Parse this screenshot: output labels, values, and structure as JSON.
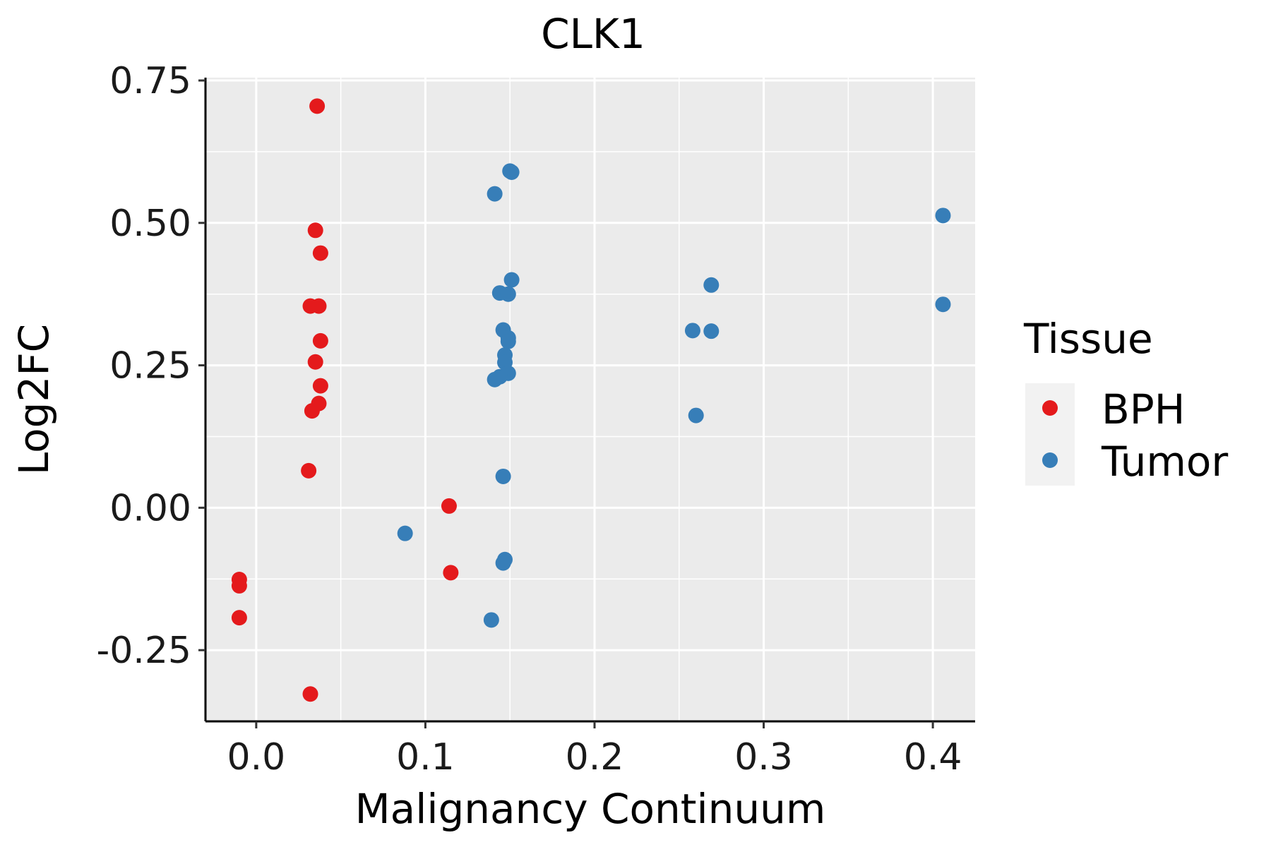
{
  "chart_data": {
    "type": "scatter",
    "title": "CLK1",
    "xlabel": "Malignancy Continuum",
    "ylabel": "Log2FC",
    "xlim": [
      -0.03,
      0.425
    ],
    "ylim": [
      -0.375,
      0.755
    ],
    "xticks": [
      0.0,
      0.1,
      0.2,
      0.3,
      0.4
    ],
    "xtick_labels": [
      "0.0",
      "0.1",
      "0.2",
      "0.3",
      "0.4"
    ],
    "yticks": [
      -0.25,
      0.0,
      0.25,
      0.5,
      0.75
    ],
    "ytick_labels": [
      "-0.25",
      "0.00",
      "0.25",
      "0.50",
      "0.75"
    ],
    "grid": true,
    "legend": {
      "title": "Tissue",
      "position": "right",
      "entries": [
        {
          "label": "BPH",
          "color": "#e41a1c"
        },
        {
          "label": "Tumor",
          "color": "#377eb8"
        }
      ]
    },
    "series": [
      {
        "name": "BPH",
        "color": "#e41a1c",
        "points": [
          {
            "x": 0.036,
            "y": 0.705
          },
          {
            "x": 0.035,
            "y": 0.487
          },
          {
            "x": 0.038,
            "y": 0.447
          },
          {
            "x": 0.032,
            "y": 0.354
          },
          {
            "x": 0.037,
            "y": 0.354
          },
          {
            "x": 0.038,
            "y": 0.293
          },
          {
            "x": 0.035,
            "y": 0.256
          },
          {
            "x": 0.038,
            "y": 0.214
          },
          {
            "x": 0.037,
            "y": 0.183
          },
          {
            "x": 0.033,
            "y": 0.17
          },
          {
            "x": 0.031,
            "y": 0.065
          },
          {
            "x": 0.114,
            "y": 0.003
          },
          {
            "x": 0.115,
            "y": -0.114
          },
          {
            "x": -0.01,
            "y": -0.126
          },
          {
            "x": -0.01,
            "y": -0.137
          },
          {
            "x": -0.01,
            "y": -0.193
          },
          {
            "x": 0.032,
            "y": -0.327
          }
        ]
      },
      {
        "name": "Tumor",
        "color": "#377eb8",
        "points": [
          {
            "x": 0.15,
            "y": 0.591
          },
          {
            "x": 0.151,
            "y": 0.589
          },
          {
            "x": 0.141,
            "y": 0.551
          },
          {
            "x": 0.406,
            "y": 0.513
          },
          {
            "x": 0.151,
            "y": 0.4
          },
          {
            "x": 0.269,
            "y": 0.391
          },
          {
            "x": 0.144,
            "y": 0.377
          },
          {
            "x": 0.149,
            "y": 0.375
          },
          {
            "x": 0.406,
            "y": 0.357
          },
          {
            "x": 0.146,
            "y": 0.312
          },
          {
            "x": 0.258,
            "y": 0.311
          },
          {
            "x": 0.269,
            "y": 0.31
          },
          {
            "x": 0.149,
            "y": 0.298
          },
          {
            "x": 0.149,
            "y": 0.292
          },
          {
            "x": 0.147,
            "y": 0.268
          },
          {
            "x": 0.147,
            "y": 0.255
          },
          {
            "x": 0.149,
            "y": 0.236
          },
          {
            "x": 0.144,
            "y": 0.23
          },
          {
            "x": 0.141,
            "y": 0.225
          },
          {
            "x": 0.26,
            "y": 0.162
          },
          {
            "x": 0.146,
            "y": 0.055
          },
          {
            "x": 0.088,
            "y": -0.045
          },
          {
            "x": 0.147,
            "y": -0.091
          },
          {
            "x": 0.146,
            "y": -0.097
          },
          {
            "x": 0.139,
            "y": -0.197
          }
        ]
      }
    ]
  }
}
